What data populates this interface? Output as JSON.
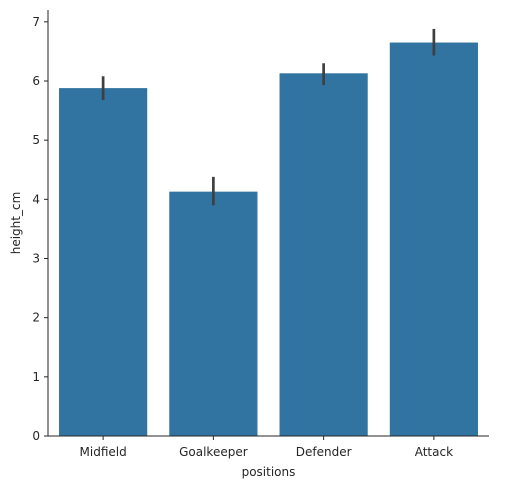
{
  "chart_data": {
    "type": "bar",
    "categories": [
      "Midfield",
      "Goalkeeper",
      "Defender",
      "Attack"
    ],
    "values": [
      5.88,
      4.13,
      6.13,
      6.65
    ],
    "error_low": [
      5.68,
      3.9,
      5.93,
      6.43
    ],
    "error_high": [
      6.08,
      4.38,
      6.3,
      6.88
    ],
    "xlabel": "positions",
    "ylabel": "height_cm",
    "ylim": [
      0,
      7.2
    ],
    "yticks": [
      0,
      1,
      2,
      3,
      4,
      5,
      6,
      7
    ],
    "grid": false,
    "colors": {
      "bar": "#3274a1",
      "error": "#3f3f3f",
      "axis": "#262626"
    }
  }
}
